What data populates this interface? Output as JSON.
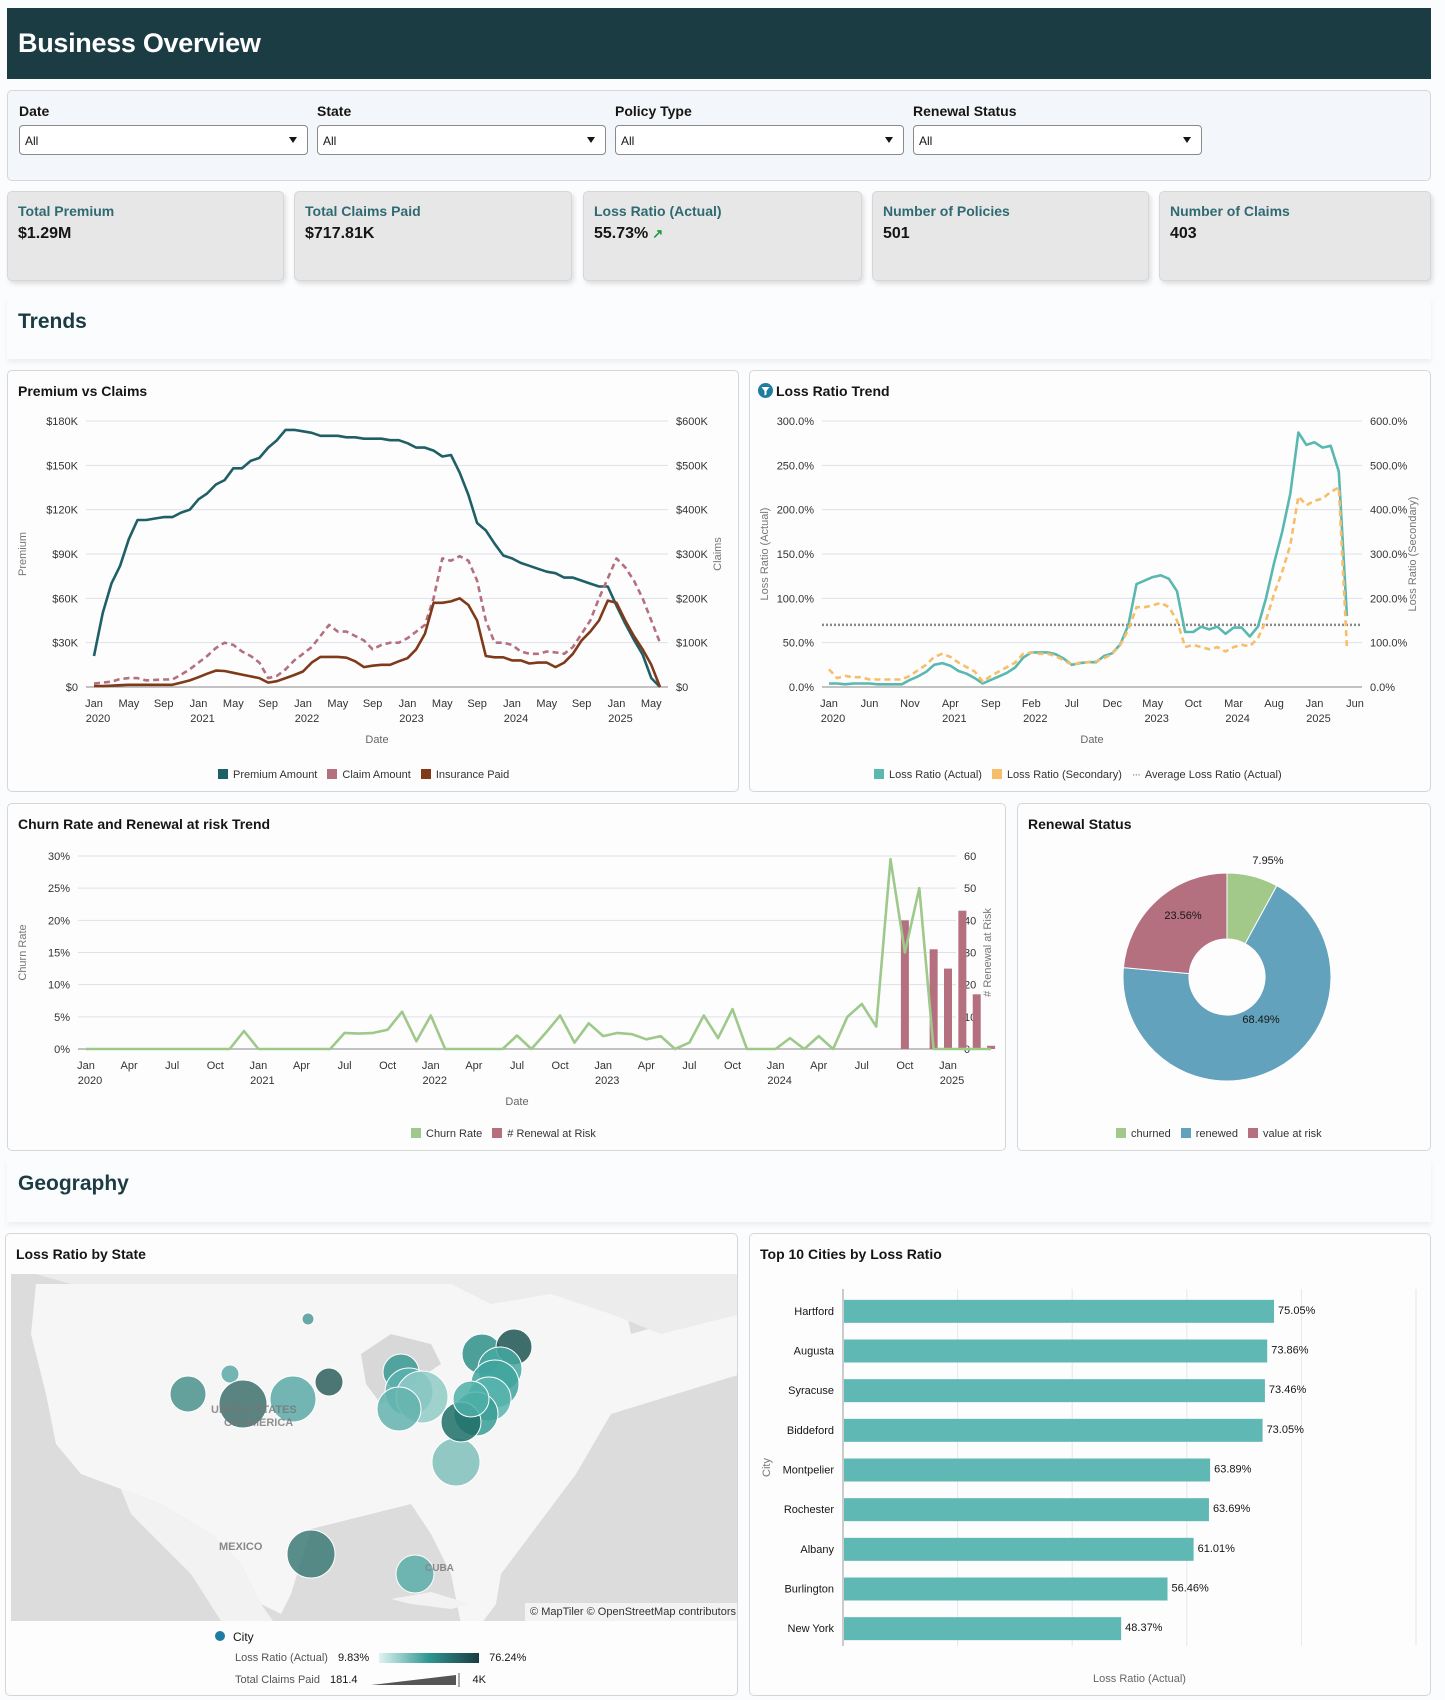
{
  "header": {
    "title": "Business Overview"
  },
  "filters": [
    {
      "label": "Date",
      "value": "All"
    },
    {
      "label": "State",
      "value": "All"
    },
    {
      "label": "Policy Type",
      "value": "All"
    },
    {
      "label": "Renewal Status",
      "value": "All"
    }
  ],
  "kpis": [
    {
      "label": "Total Premium",
      "value": "$1.29M"
    },
    {
      "label": "Total Claims Paid",
      "value": "$717.81K"
    },
    {
      "label": "Loss Ratio (Actual)",
      "value": "55.73%",
      "trend_icon": "trend-up-icon",
      "trend_glyph": "↗"
    },
    {
      "label": "Number of Policies",
      "value": "501"
    },
    {
      "label": "Number of Claims",
      "value": "403"
    }
  ],
  "sections": {
    "trends": "Trends",
    "geography": "Geography"
  },
  "colors": {
    "premium": "#1f5f66",
    "claim": "#b5707f",
    "insurance": "#7f3a1a",
    "lr_actual": "#5ab8b0",
    "lr_secondary": "#f7be6a",
    "avg": "#8a8a8a",
    "churn": "#9ec98a",
    "renewal_risk": "#b5707f",
    "churned": "#a2c98a",
    "renewed": "#62a2bc",
    "value_at_risk": "#b5707f",
    "bar": "#5fb8b3"
  },
  "chart_data": [
    {
      "id": "premium_vs_claims",
      "type": "line",
      "title": "Premium vs Claims",
      "xlabel": "Date",
      "ylabel": "Premium",
      "y2label": "Claims",
      "x_ticks": [
        "Jan|2020",
        "May",
        "Sep",
        "Jan|2021",
        "May",
        "Sep",
        "Jan|2022",
        "May",
        "Sep",
        "Jan|2023",
        "May",
        "Sep",
        "Jan|2024",
        "May",
        "Sep",
        "Jan|2025",
        "May"
      ],
      "y_ticks": [
        "$0",
        "$30K",
        "$60K",
        "$90K",
        "$120K",
        "$150K",
        "$180K"
      ],
      "y2_ticks": [
        "$0",
        "$100K",
        "$200K",
        "$300K",
        "$400K",
        "$500K",
        "$600K"
      ],
      "ylim": [
        0,
        180000
      ],
      "y2lim": [
        0,
        600000
      ],
      "x_start": "2020-01",
      "months": 66,
      "series": [
        {
          "name": "Premium Amount",
          "axis": "left",
          "style": "solid",
          "values": [
            21000,
            50000,
            70000,
            82000,
            100000,
            113000,
            113000,
            114000,
            115000,
            115000,
            118000,
            120000,
            127000,
            131000,
            137000,
            140000,
            148000,
            148000,
            153000,
            155000,
            162000,
            167000,
            174000,
            174000,
            173000,
            172000,
            170000,
            170000,
            170000,
            169000,
            169000,
            168000,
            168000,
            168000,
            167000,
            167000,
            165000,
            162000,
            162000,
            160000,
            156000,
            157000,
            145000,
            130000,
            111000,
            106000,
            97000,
            89000,
            87000,
            84000,
            82000,
            80000,
            78000,
            77000,
            74000,
            74000,
            72000,
            70000,
            68000,
            68000,
            55000,
            43000,
            32000,
            22000,
            6000,
            0
          ]
        },
        {
          "name": "Claim Amount",
          "axis": "right",
          "style": "dashed",
          "values": [
            8000,
            10000,
            12000,
            18000,
            20000,
            20000,
            15000,
            16000,
            17000,
            17000,
            28000,
            40000,
            55000,
            70000,
            88000,
            100000,
            95000,
            80000,
            70000,
            55000,
            20000,
            25000,
            40000,
            60000,
            75000,
            90000,
            115000,
            140000,
            125000,
            125000,
            115000,
            105000,
            85000,
            95000,
            100000,
            100000,
            110000,
            125000,
            140000,
            200000,
            290000,
            285000,
            295000,
            285000,
            240000,
            150000,
            100000,
            100000,
            95000,
            80000,
            75000,
            75000,
            80000,
            78000,
            75000,
            90000,
            120000,
            150000,
            200000,
            245000,
            290000,
            270000,
            240000,
            200000,
            150000,
            100000
          ]
        },
        {
          "name": "Insurance Paid",
          "axis": "right",
          "style": "solid",
          "values": [
            2000,
            2000,
            3000,
            4000,
            5000,
            5000,
            5000,
            5000,
            5000,
            5000,
            10000,
            15000,
            22000,
            30000,
            37000,
            36000,
            32000,
            28000,
            24000,
            20000,
            10000,
            13000,
            20000,
            27000,
            35000,
            55000,
            68000,
            68000,
            68000,
            66000,
            58000,
            45000,
            48000,
            50000,
            50000,
            58000,
            65000,
            85000,
            120000,
            190000,
            190000,
            193000,
            200000,
            185000,
            150000,
            70000,
            67000,
            67000,
            60000,
            60000,
            53000,
            55000,
            55000,
            45000,
            55000,
            75000,
            105000,
            125000,
            150000,
            195000,
            190000,
            150000,
            115000,
            85000,
            50000,
            0
          ]
        }
      ]
    },
    {
      "id": "loss_ratio_trend",
      "type": "line",
      "title": "Loss Ratio Trend",
      "title_icon": "filter-icon",
      "xlabel": "Date",
      "ylabel": "Loss Ratio (Actual)",
      "y2label": "Loss Ratio (Secondary)",
      "x_ticks": [
        "Jan|2020",
        "Jun",
        "Nov",
        "Apr|2021",
        "Sep",
        "Feb|2022",
        "Jul",
        "Dec",
        "May|2023",
        "Oct",
        "Mar|2024",
        "Aug",
        "Jan|2025",
        "Jun"
      ],
      "y_ticks": [
        "0.0%",
        "50.0%",
        "100.0%",
        "150.0%",
        "200.0%",
        "250.0%",
        "300.0%"
      ],
      "y2_ticks": [
        "0.0%",
        "100.0%",
        "200.0%",
        "300.0%",
        "400.0%",
        "500.0%",
        "600.0%"
      ],
      "ylim": [
        0,
        300
      ],
      "y2lim": [
        0,
        600
      ],
      "average_actual": 70,
      "series": [
        {
          "name": "Loss Ratio (Actual)",
          "axis": "left",
          "style": "solid",
          "values": [
            4,
            4,
            3,
            4,
            4,
            4,
            3,
            3,
            3,
            3,
            8,
            12,
            17,
            25,
            27,
            24,
            18,
            15,
            10,
            4,
            8,
            12,
            16,
            22,
            33,
            39,
            39,
            39,
            37,
            32,
            25,
            27,
            28,
            28,
            35,
            38,
            48,
            70,
            116,
            120,
            124,
            126,
            122,
            108,
            62,
            62,
            68,
            65,
            68,
            60,
            67,
            67,
            57,
            68,
            100,
            140,
            175,
            218,
            287,
            273,
            276,
            270,
            272,
            243,
            80
          ]
        },
        {
          "name": "Loss Ratio (Secondary)",
          "axis": "right",
          "style": "dashed",
          "values": [
            40,
            20,
            25,
            22,
            22,
            17,
            17,
            17,
            17,
            17,
            25,
            38,
            50,
            68,
            75,
            68,
            55,
            45,
            35,
            12,
            25,
            35,
            45,
            55,
            75,
            78,
            75,
            75,
            70,
            60,
            50,
            55,
            56,
            58,
            65,
            75,
            95,
            130,
            180,
            180,
            184,
            190,
            180,
            150,
            90,
            95,
            90,
            85,
            90,
            80,
            90,
            95,
            92,
            110,
            150,
            210,
            260,
            320,
            430,
            410,
            420,
            425,
            440,
            450,
            90
          ]
        },
        {
          "name": "Average Loss Ratio (Actual)",
          "axis": "left",
          "style": "dotted",
          "values": []
        }
      ]
    },
    {
      "id": "churn_renewal",
      "type": "line",
      "title": "Churn Rate and Renewal at risk Trend",
      "xlabel": "Date",
      "ylabel": "Churn Rate",
      "y2label": "# Renewal at Risk",
      "x_ticks": [
        "Jan|2020",
        "Apr",
        "Jul",
        "Oct",
        "Jan|2021",
        "Apr",
        "Jul",
        "Oct",
        "Jan|2022",
        "Apr",
        "Jul",
        "Oct",
        "Jan|2023",
        "Apr",
        "Jul",
        "Oct",
        "Jan|2024",
        "Apr",
        "Jul",
        "Oct",
        "Jan|2025"
      ],
      "y_ticks": [
        "0%",
        "5%",
        "10%",
        "15%",
        "20%",
        "25%",
        "30%"
      ],
      "y2_ticks": [
        "0",
        "10",
        "20",
        "30",
        "40",
        "50",
        "60"
      ],
      "ylim": [
        0,
        30
      ],
      "y2lim": [
        0,
        60
      ],
      "series": [
        {
          "name": "Churn Rate",
          "axis": "left",
          "type": "line",
          "values": [
            0,
            0,
            0,
            0,
            0,
            0,
            0,
            0,
            0,
            0,
            0,
            2.8,
            0,
            0,
            0,
            0,
            0,
            0,
            2.5,
            2.4,
            2.5,
            3,
            5.8,
            1.2,
            5.2,
            0,
            0,
            0,
            0,
            0,
            2.1,
            0,
            2.5,
            5.2,
            1,
            4,
            2,
            2.5,
            2.3,
            1.5,
            2,
            0,
            1,
            5.2,
            1.7,
            6.2,
            0,
            0,
            0,
            1.7,
            0,
            2,
            0,
            5,
            7,
            3.5,
            29.5,
            15,
            25,
            0,
            0,
            0,
            0,
            0
          ]
        },
        {
          "name": "# Renewal at Risk",
          "axis": "right",
          "type": "bar",
          "values": [
            0,
            0,
            0,
            0,
            0,
            0,
            0,
            0,
            0,
            0,
            0,
            0,
            0,
            0,
            0,
            0,
            0,
            0,
            0,
            0,
            0,
            0,
            0,
            0,
            0,
            0,
            0,
            0,
            0,
            0,
            0,
            0,
            0,
            0,
            0,
            0,
            0,
            0,
            0,
            0,
            0,
            0,
            0,
            0,
            0,
            0,
            0,
            0,
            0,
            0,
            0,
            0,
            0,
            0,
            0,
            0,
            0,
            40,
            0,
            31,
            25,
            43,
            17,
            1
          ]
        }
      ]
    },
    {
      "id": "renewal_status",
      "type": "pie",
      "title": "Renewal Status",
      "donut": true,
      "slices": [
        {
          "name": "churned",
          "value": 7.95,
          "label": "7.95%"
        },
        {
          "name": "renewed",
          "value": 68.49,
          "label": "68.49%"
        },
        {
          "name": "value at risk",
          "value": 23.56,
          "label": "23.56%"
        }
      ]
    },
    {
      "id": "top_cities",
      "type": "bar",
      "orientation": "horizontal",
      "title": "Top 10 Cities by Loss Ratio",
      "xlabel": "Loss Ratio (Actual)",
      "ylabel": "City",
      "xlim": [
        0,
        100
      ],
      "categories": [
        "Hartford",
        "Augusta",
        "Syracuse",
        "Biddeford",
        "Montpelier",
        "Rochester",
        "Albany",
        "Burlington",
        "New York"
      ],
      "values": [
        75.05,
        73.86,
        73.46,
        73.05,
        63.89,
        63.69,
        61.01,
        56.46,
        48.37
      ],
      "labels": [
        "75.05%",
        "73.86%",
        "73.46%",
        "73.05%",
        "63.89%",
        "63.69%",
        "61.01%",
        "56.46%",
        "48.37%"
      ]
    }
  ],
  "map": {
    "title": "Loss Ratio by State",
    "attribution": "© MapTiler © OpenStreetMap contributors",
    "labels": {
      "country": "UNITED STATES",
      "country2": "OF AMERICA",
      "mexico": "MEXICO",
      "cuba": "CUBA"
    },
    "legend": {
      "layer": "City",
      "color_label": "Loss Ratio (Actual)",
      "color_min": "9.83%",
      "color_max": "76.24%",
      "size_label": "Total Claims Paid",
      "size_min": "181.4",
      "size_max": "4K"
    }
  }
}
